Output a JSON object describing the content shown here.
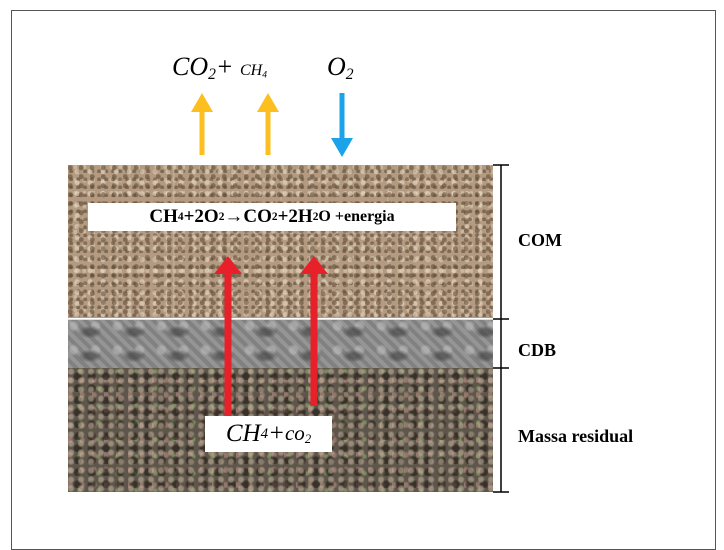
{
  "top_gases": {
    "left": {
      "co": "CO",
      "co_sub": "2",
      "plus": "+",
      "ch": "CH",
      "ch_sub": "4"
    },
    "right": {
      "o": "O",
      "o_sub": "2"
    }
  },
  "equation": {
    "ch": "CH",
    "ch_sub": "4",
    "plus1": "+2O",
    "o_sub": "2",
    "arrow": "→",
    "co": "CO",
    "co_sub": "2",
    "plus2": "+2H",
    "h_sub": "2",
    "tail": "O +energia"
  },
  "bottom_gas": {
    "ch": "CH",
    "ch_sub": "4",
    "plus": "+",
    "co": "co",
    "co_sub": "2"
  },
  "layers": {
    "com": "COM",
    "cdb": "CDB",
    "massa": "Massa residual"
  },
  "colors": {
    "emission_arrow": "#FDBF1F",
    "oxygen_arrow": "#1AA3E8",
    "internal_arrow": "#E8202A",
    "bracket": "#000000"
  },
  "icons": {
    "emission": "arrow-up-icon",
    "oxygen": "arrow-down-icon",
    "internal": "arrow-up-icon"
  }
}
